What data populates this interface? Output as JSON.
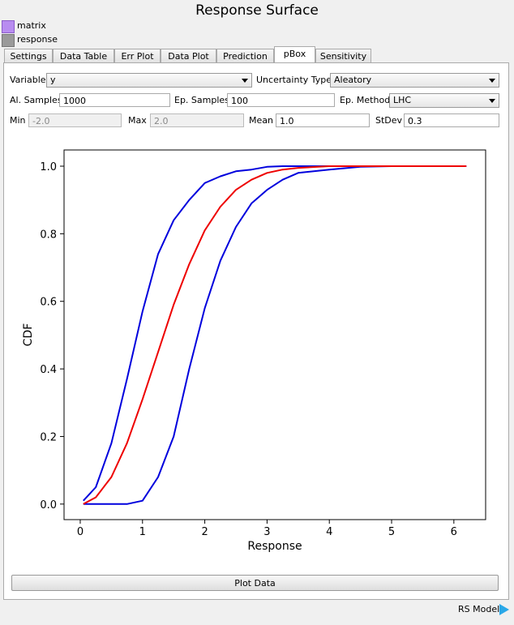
{
  "window": {
    "title": "Response Surface"
  },
  "ports": [
    "matrix",
    "response"
  ],
  "tabs": {
    "items": [
      "Settings",
      "Data Table",
      "Err Plot",
      "Data Plot",
      "Prediction",
      "pBox",
      "Sensitivity"
    ],
    "active": 5
  },
  "form": {
    "variable": {
      "label": "Variable",
      "value": "y"
    },
    "uncertainty_type": {
      "label": "Uncertainty Type",
      "value": "Aleatory"
    },
    "al_samples": {
      "label": "Al. Samples",
      "value": "1000"
    },
    "ep_samples": {
      "label": "Ep. Samples",
      "value": "100"
    },
    "ep_method": {
      "label": "Ep. Method",
      "value": "LHC"
    },
    "min": {
      "label": "Min",
      "value": "-2.0"
    },
    "max": {
      "label": "Max",
      "value": "2.0"
    },
    "mean": {
      "label": "Mean",
      "value": "1.0"
    },
    "stdev": {
      "label": "StDev",
      "value": "0.3"
    }
  },
  "chart_data": {
    "type": "line",
    "xlabel": "Response",
    "ylabel": "CDF",
    "x": [
      0.05,
      0.25,
      0.5,
      0.75,
      1.0,
      1.25,
      1.5,
      1.75,
      2.0,
      2.25,
      2.5,
      2.75,
      3.0,
      3.25,
      3.5,
      4.0,
      4.5,
      5.0,
      6.2
    ],
    "series": [
      {
        "color": "#0000dd",
        "values": [
          0.01,
          0.05,
          0.18,
          0.37,
          0.57,
          0.74,
          0.84,
          0.9,
          0.95,
          0.97,
          0.985,
          0.99,
          0.998,
          1.0,
          1.0,
          1.0,
          1.0,
          1.0,
          1.0
        ]
      },
      {
        "color": "#0000dd",
        "values": [
          0,
          0,
          0,
          0,
          0.01,
          0.08,
          0.2,
          0.4,
          0.58,
          0.72,
          0.82,
          0.89,
          0.93,
          0.96,
          0.98,
          0.99,
          0.998,
          1.0,
          1.0
        ]
      },
      {
        "color": "#ee0000",
        "values": [
          0,
          0.02,
          0.08,
          0.18,
          0.31,
          0.45,
          0.59,
          0.71,
          0.81,
          0.88,
          0.93,
          0.96,
          0.98,
          0.99,
          0.995,
          1.0,
          1.0,
          1.0,
          1.0
        ]
      }
    ],
    "xlim": [
      -0.26,
      6.51
    ],
    "ylim": [
      -0.046,
      1.048
    ],
    "xticks": [
      0,
      1,
      2,
      3,
      4,
      5,
      6
    ],
    "yticks": [
      {
        "value": 0,
        "label": "0.0"
      },
      {
        "value": 0.2,
        "label": "0.2"
      },
      {
        "value": 0.4,
        "label": "0.4"
      },
      {
        "value": 0.6,
        "label": "0.6"
      },
      {
        "value": 0.8,
        "label": "0.8"
      },
      {
        "value": 1.0,
        "label": "1.0"
      }
    ]
  },
  "button": "Plot Data",
  "status": "RS Model"
}
